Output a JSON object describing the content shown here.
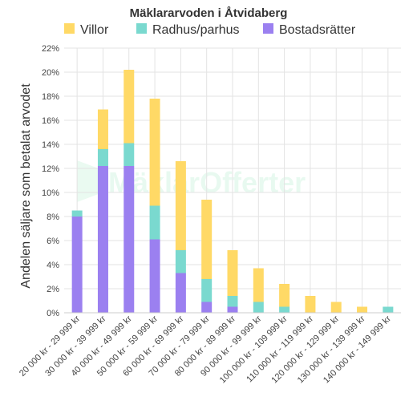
{
  "chart_data": {
    "type": "bar",
    "stacked": true,
    "title": "Mäklararvoden i Åtvidaberg",
    "ylabel": "Andelen säljare som betalat arvodet",
    "xlabel": "",
    "ylim": [
      0,
      22
    ],
    "y_ticks": [
      "0%",
      "2%",
      "4%",
      "6%",
      "8%",
      "10%",
      "12%",
      "14%",
      "16%",
      "18%",
      "20%",
      "22%"
    ],
    "grid": true,
    "legend_position": "top",
    "categories": [
      "20 000 kr - 29 999 kr",
      "30 000 kr - 39 999 kr",
      "40 000 kr - 49 999 kr",
      "50 000 kr - 59 999 kr",
      "60 000 kr - 69 999 kr",
      "70 000 kr - 79 999 kr",
      "80 000 kr - 89 999 kr",
      "90 000 kr - 99 999 kr",
      "100 000 kr - 109 999 kr",
      "110 000 kr - 119 999 kr",
      "120 000 kr - 129 999 kr",
      "130 000 kr - 139 999 kr",
      "140 000 kr - 149 999 kr"
    ],
    "series": [
      {
        "name": "Villor",
        "color": "#ffd966",
        "values": [
          0,
          3.3,
          6.1,
          8.9,
          7.4,
          6.6,
          3.8,
          2.8,
          1.9,
          1.4,
          0.9,
          0.5,
          0
        ]
      },
      {
        "name": "Radhus/parhus",
        "color": "#7ad9cf",
        "values": [
          0.5,
          1.4,
          1.9,
          2.8,
          1.9,
          1.9,
          0.9,
          0.9,
          0.5,
          0,
          0,
          0,
          0.5
        ]
      },
      {
        "name": "Bostadsrätter",
        "color": "#9b80f0",
        "values": [
          8.0,
          12.2,
          12.2,
          6.1,
          3.3,
          0.9,
          0.5,
          0,
          0,
          0,
          0,
          0,
          0
        ]
      }
    ],
    "legend_order": [
      "Villor",
      "Radhus/parhus",
      "Bostadsrätter"
    ]
  },
  "watermark": {
    "text": "MäklarOfferter"
  }
}
